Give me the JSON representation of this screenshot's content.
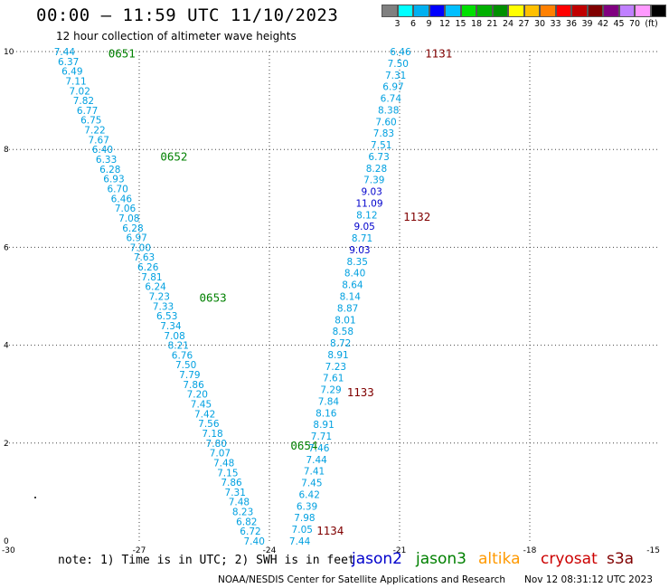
{
  "header": {
    "title": "00:00 – 11:59 UTC 11/10/2023",
    "subtitle": "12 hour collection of altimeter wave heights"
  },
  "colorbar": {
    "colors": [
      "#808080",
      "#00ffff",
      "#00b0f0",
      "#0000ff",
      "#00bfff",
      "#00e000",
      "#00b000",
      "#009000",
      "#ffff00",
      "#ffc000",
      "#ff8000",
      "#ff0000",
      "#c00000",
      "#800000",
      "#800080",
      "#c080ff",
      "#ff99ff",
      "#000000"
    ],
    "labels": [
      "3",
      "6",
      "9",
      "12",
      "15",
      "18",
      "21",
      "24",
      "27",
      "30",
      "33",
      "36",
      "39",
      "42",
      "45",
      "70",
      "(ft)"
    ]
  },
  "note": "note:  1) Time is in UTC;  2) SWH is in feet",
  "missions": [
    {
      "name": "jason2",
      "color": "#0000cc"
    },
    {
      "name": "jason3",
      "color": "#008000"
    },
    {
      "name": "altika",
      "color": "#ff9900"
    },
    {
      "name": "cryosat",
      "color": "#cc0000"
    },
    {
      "name": "s3a",
      "color": "#800000"
    }
  ],
  "footer": {
    "left": "NOAA/NESDIS Center for Satellite Applications and Research",
    "right": "Nov 12 08:31:12 UTC 2023"
  },
  "chart_data": {
    "type": "scatter",
    "title": "00:00 – 11:59 UTC 11/10/2023",
    "subtitle": "12 hour collection of altimeter wave heights",
    "xlabel": "",
    "ylabel": "",
    "xlim": [
      -30,
      -15
    ],
    "ylim": [
      0,
      10
    ],
    "x_ticks": [
      "-30",
      "-27",
      "-24",
      "-21",
      "-18",
      "-15"
    ],
    "y_ticks": [
      "0",
      "2",
      "4",
      "6",
      "8",
      "10"
    ],
    "grid": true,
    "units": "ft",
    "tracks": [
      {
        "name": "jason3",
        "color": "#00a0e0",
        "x_start": -28.72,
        "y_start": 10.0,
        "x_end": -24.35,
        "y_end": 0.0,
        "swh": [
          "7.44",
          "6.37",
          "6.49",
          "7.11",
          "7.02",
          "7.82",
          "6.77",
          "6.75",
          "7.22",
          "7.67",
          "6.40",
          "6.33",
          "6.28",
          "6.93",
          "6.70",
          "6.46",
          "7.06",
          "7.08",
          "6.28",
          "6.97",
          "7.00",
          "7.63",
          "6.26",
          "7.81",
          "6.24",
          "7.23",
          "7.33",
          "6.53",
          "7.34",
          "7.08",
          "8.21",
          "6.76",
          "7.50",
          "7.79",
          "7.86",
          "7.20",
          "7.45",
          "7.42",
          "7.56",
          "7.18",
          "7.80",
          "7.07",
          "7.48",
          "7.15",
          "7.86",
          "7.31",
          "7.48",
          "8.23",
          "6.82",
          "6.72",
          "7.40"
        ],
        "swh_colors": {},
        "time_labels": [
          {
            "text": "0651",
            "x": -27.4,
            "y": 9.95,
            "color": "#008000"
          },
          {
            "text": "0652",
            "x": -26.2,
            "y": 7.85,
            "color": "#008000"
          },
          {
            "text": "0653",
            "x": -25.3,
            "y": 4.96,
            "color": "#008000"
          },
          {
            "text": "0654",
            "x": -23.2,
            "y": 1.94,
            "color": "#008000"
          }
        ]
      },
      {
        "name": "s3a",
        "color": "#00a0e0",
        "x_start": -20.98,
        "y_start": 10.0,
        "x_end": -23.3,
        "y_end": 0.0,
        "swh": [
          "6.46",
          "7.50",
          "7.31",
          "6.97",
          "6.74",
          "8.38",
          "7.60",
          "7.83",
          "7.51",
          "6.73",
          "8.28",
          "7.39",
          "9.03",
          "11.09",
          "8.12",
          "9.05",
          "8.71",
          "9.03",
          "8.35",
          "8.40",
          "8.64",
          "8.14",
          "8.87",
          "8.01",
          "8.58",
          "8.72",
          "8.91",
          "7.23",
          "7.61",
          "7.29",
          "7.84",
          "8.16",
          "8.91",
          "7.71",
          "7.46",
          "7.44",
          "7.41",
          "7.45",
          "6.42",
          "6.39",
          "7.98",
          "7.05",
          "7.44"
        ],
        "swh_colors": {
          "12": "#0000cc",
          "13": "#0000cc",
          "15": "#0000cc",
          "17": "#0000cc"
        },
        "time_labels": [
          {
            "text": "1131",
            "x": -20.1,
            "y": 9.95,
            "color": "#800000"
          },
          {
            "text": "1132",
            "x": -20.6,
            "y": 6.62,
            "color": "#800000"
          },
          {
            "text": "1133",
            "x": -21.9,
            "y": 3.03,
            "color": "#800000"
          },
          {
            "text": "1134",
            "x": -22.6,
            "y": 0.2,
            "color": "#800000"
          }
        ]
      }
    ]
  }
}
